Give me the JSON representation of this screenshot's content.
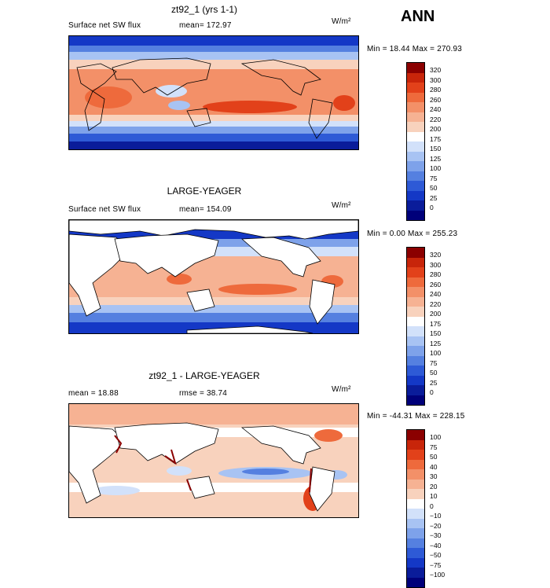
{
  "season": "ANN",
  "panels": [
    {
      "title": "zt92_1 (yrs 1-1)",
      "variable": "Surface net SW flux",
      "stat_label": "mean=",
      "stat_value": "172.97",
      "units": "W/m²",
      "min_max": "Min =  18.44 Max = 270.93",
      "colorbar_labels": [
        "320",
        "300",
        "280",
        "260",
        "240",
        "220",
        "200",
        "175",
        "150",
        "125",
        "100",
        "75",
        "50",
        "25",
        "0"
      ]
    },
    {
      "title": "LARGE-YEAGER",
      "variable": "Surface net SW flux",
      "stat_label": "mean=",
      "stat_value": "154.09",
      "units": "W/m²",
      "min_max": "Min =   0.00 Max = 255.23",
      "colorbar_labels": [
        "320",
        "300",
        "280",
        "260",
        "240",
        "220",
        "200",
        "175",
        "150",
        "125",
        "100",
        "75",
        "50",
        "25",
        "0"
      ]
    },
    {
      "title": "zt92_1 - LARGE-YEAGER",
      "stat1": "mean =   18.88",
      "stat2": "rmse =   38.74",
      "units": "W/m²",
      "min_max": "Min = -44.31 Max = 228.15",
      "colorbar_labels": [
        "100",
        "75",
        "50",
        "40",
        "30",
        "20",
        "10",
        "0",
        "−10",
        "−20",
        "−30",
        "−40",
        "−50",
        "−75",
        "−100"
      ]
    }
  ],
  "colors": {
    "abs_scale": [
      "#8b0000",
      "#c8250a",
      "#e2411a",
      "#ee6a3c",
      "#f39068",
      "#f6b293",
      "#f8d2bd",
      "#ffffff",
      "#d2e1fa",
      "#a8c3f3",
      "#7ea2ea",
      "#5580e0",
      "#2e5ad6",
      "#1438c6",
      "#0a1c9a",
      "#00007a"
    ],
    "diff_scale": [
      "#8b0000",
      "#c8250a",
      "#e2411a",
      "#ee6a3c",
      "#f39068",
      "#f6b293",
      "#f8d2bd",
      "#ffffff",
      "#d2e1fa",
      "#a8c3f3",
      "#7ea2ea",
      "#5580e0",
      "#2e5ad6",
      "#1438c6",
      "#0a1c9a",
      "#00007a"
    ]
  }
}
